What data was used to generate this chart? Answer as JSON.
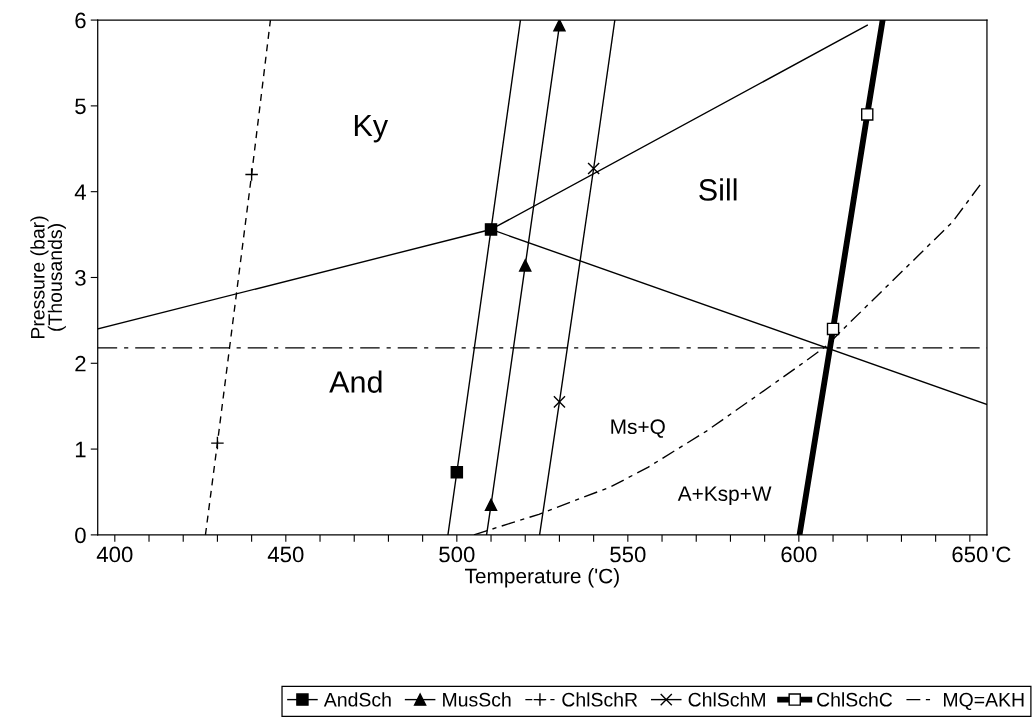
{
  "chart_data": {
    "type": "line",
    "xlabel": "Temperature ('C)",
    "ylabel": "Pressure (bar)\n(Thousands)",
    "xlim": [
      395,
      655
    ],
    "xticks": [
      400,
      {
        "value": 410,
        "label": null
      },
      {
        "value": 420,
        "label": null
      },
      {
        "value": 430,
        "label": null
      },
      {
        "value": 440,
        "label": null
      },
      450,
      {
        "value": 460,
        "label": null
      },
      {
        "value": 470,
        "label": null
      },
      {
        "value": 480,
        "label": null
      },
      {
        "value": 490,
        "label": null
      },
      500,
      {
        "value": 510,
        "label": null
      },
      {
        "value": 520,
        "label": null
      },
      {
        "value": 530,
        "label": null
      },
      {
        "value": 540,
        "label": null
      },
      550,
      {
        "value": 560,
        "label": null
      },
      {
        "value": 570,
        "label": null
      },
      {
        "value": 580,
        "label": null
      },
      {
        "value": 590,
        "label": null
      },
      600,
      {
        "value": 610,
        "label": null
      },
      {
        "value": 620,
        "label": null
      },
      {
        "value": 630,
        "label": null
      },
      {
        "value": 640,
        "label": null
      },
      650
    ],
    "ylim": [
      0,
      6
    ],
    "yticks": [
      0,
      1,
      2,
      3,
      4,
      5,
      6
    ],
    "legend": "bottom",
    "series": [
      {
        "name": "AndSch",
        "color": "#000000",
        "marker": "square",
        "line_style": "solid",
        "x": [
          497.4,
          500,
          510,
          518.6
        ],
        "values": [
          0,
          0.73,
          3.56,
          6
        ]
      },
      {
        "name": "MusSch",
        "color": "#000000",
        "marker": "triangle",
        "line_style": "solid",
        "x": [
          508.7,
          510,
          520,
          530
        ],
        "values": [
          0,
          0.35,
          3.14,
          5.94
        ]
      },
      {
        "name": "ChlSchR",
        "color": "#000000",
        "marker": "cross",
        "line_style": "dashed",
        "x": [
          426.5,
          430,
          440,
          445.5
        ],
        "values": [
          0,
          1.07,
          4.2,
          6
        ]
      },
      {
        "name": "ChlSchM",
        "color": "#000000",
        "marker": "cross",
        "line_style": "solid",
        "x": [
          524.2,
          530,
          540,
          546.2
        ],
        "values": [
          0,
          1.55,
          4.27,
          6
        ]
      },
      {
        "name": "ChlSchC",
        "color": "#000000",
        "marker": "square",
        "line_style": "solid",
        "x": [
          600.2,
          610,
          620,
          624.5
        ],
        "values": [
          0,
          2.4,
          4.9,
          6
        ]
      },
      {
        "name": "MQ=AKH",
        "color": "#000000",
        "line_style": "dashed",
        "x": [
          505,
          516,
          524,
          545,
          556,
          573,
          588,
          599,
          608,
          613,
          633,
          645,
          653
        ],
        "values": [
          0,
          0.14,
          0.24,
          0.56,
          0.79,
          1.21,
          1.63,
          1.94,
          2.2,
          2.4,
          3.18,
          3.65,
          4.08
        ]
      },
      {
        "color": "#000000",
        "x": [
          395,
          510
        ],
        "values": [
          2.4,
          3.56
        ]
      },
      {
        "color": "#000000",
        "x": [
          510,
          620
        ],
        "values": [
          3.56,
          5.94
        ]
      },
      {
        "color": "#000000",
        "x": [
          510,
          655
        ],
        "values": [
          3.56,
          1.52
        ]
      }
    ],
    "ref_lines": [
      {
        "axis": "y",
        "value": 2.18,
        "color": "#000000",
        "line_style": "dashed"
      }
    ],
    "annotations": [
      "Ky",
      "Sill",
      "And",
      "Ms+Q",
      "A+Ksp+W",
      "'C"
    ]
  }
}
